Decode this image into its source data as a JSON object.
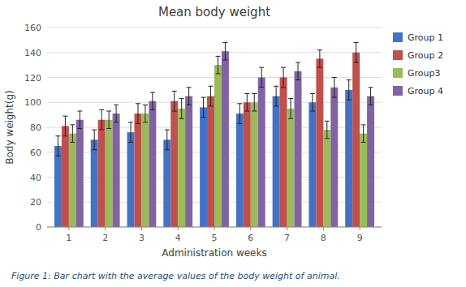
{
  "chart_data": {
    "type": "bar",
    "title": "Mean body weight",
    "xlabel": "Administration weeks",
    "ylabel": "Body weight(g)",
    "caption": "Figure 1: Bar chart with the average values of the body weight of animal.",
    "x": [
      1,
      2,
      3,
      4,
      5,
      6,
      7,
      8,
      9
    ],
    "xlim": [
      0.4,
      9.6
    ],
    "xticks": [
      1,
      2,
      3,
      4,
      5,
      6,
      7,
      8,
      9
    ],
    "ylim": [
      0,
      160
    ],
    "yticks": [
      0,
      20,
      40,
      60,
      80,
      100,
      120,
      140,
      160
    ],
    "grid": true,
    "legend": "right",
    "series": [
      {
        "name": "Group 1",
        "color": "#4472C4",
        "values": [
          65,
          70,
          76,
          70,
          96,
          91,
          105,
          100,
          110
        ],
        "errors": [
          8,
          8,
          8,
          8,
          8,
          8,
          8,
          7,
          8
        ]
      },
      {
        "name": "Group 2",
        "color": "#C0504D",
        "values": [
          81,
          86,
          91,
          101,
          105,
          100,
          120,
          135,
          140
        ],
        "errors": [
          8,
          8,
          8,
          8,
          8,
          7,
          8,
          7,
          8
        ]
      },
      {
        "name": "Group3",
        "color": "#9BBB59",
        "values": [
          75,
          86,
          91,
          95,
          130,
          100,
          95,
          78,
          75
        ],
        "errors": [
          7,
          7,
          7,
          8,
          7,
          7,
          8,
          7,
          7
        ]
      },
      {
        "name": "Group 4",
        "color": "#8064A2",
        "values": [
          86,
          91,
          101,
          105,
          141,
          120,
          125,
          112,
          105
        ],
        "errors": [
          7,
          7,
          7,
          7,
          7,
          8,
          7,
          8,
          7
        ]
      }
    ]
  }
}
